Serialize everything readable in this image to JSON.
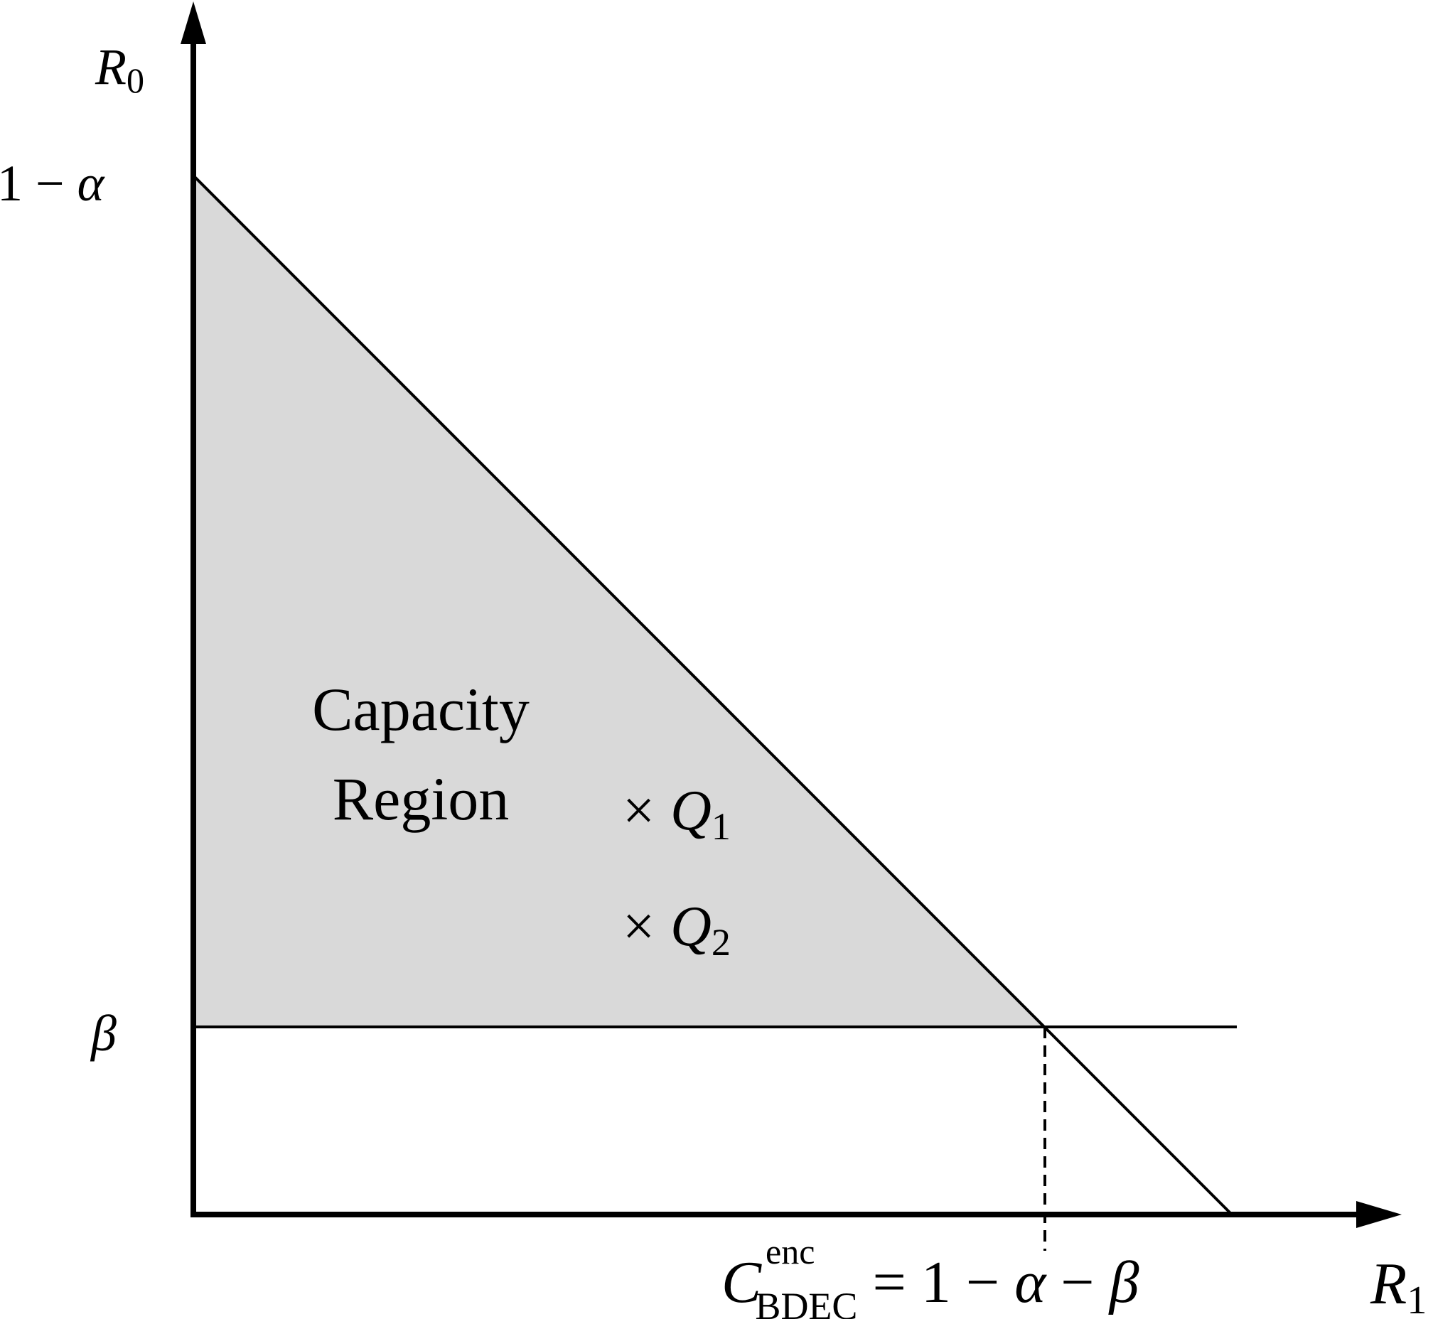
{
  "axes": {
    "y_label_base": "R",
    "y_label_sub": "0",
    "x_label_base": "R",
    "x_label_sub": "1"
  },
  "ticks": {
    "y_top_prefix": "1 − ",
    "y_top_symbol": "α",
    "y_beta": "β",
    "x_cap_base": "C",
    "x_cap_sup": "enc",
    "x_cap_sub": "BDEC",
    "x_cap_eq": " = 1 − ",
    "x_cap_alpha": "α",
    "x_cap_minus": " − ",
    "x_cap_beta": "β"
  },
  "region": {
    "label_line1": "Capacity",
    "label_line2": "Region",
    "fill": "#d9d9d9"
  },
  "points": [
    {
      "mark": "×",
      "base": "Q",
      "sub": "1"
    },
    {
      "mark": "×",
      "base": "Q",
      "sub": "2"
    }
  ]
}
